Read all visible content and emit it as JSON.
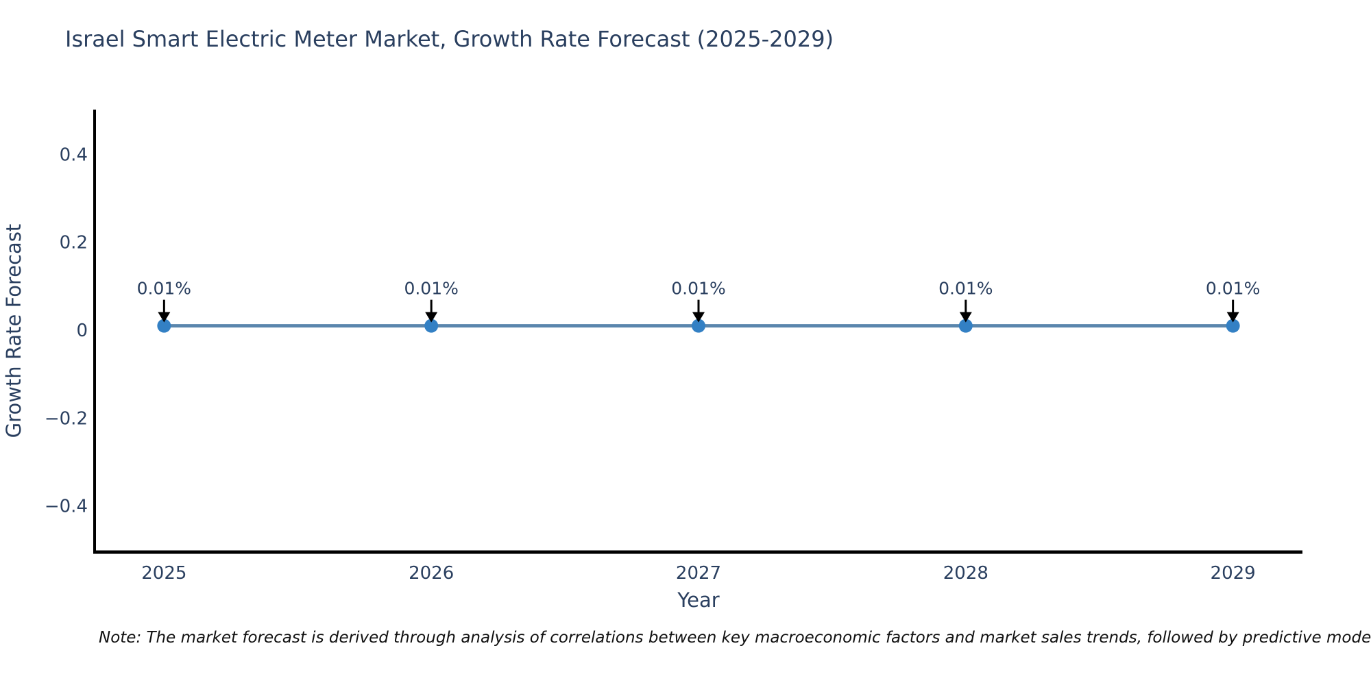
{
  "page": {
    "background_color": "#ffffff"
  },
  "title": {
    "text": "Israel Smart Electric Meter Market, Growth Rate Forecast (2025-2029)",
    "color": "#2a3f5f"
  },
  "note": {
    "text": "Note: The market forecast is derived through analysis of correlations between key macroeconomic factors and market sales trends, followed by predictive modeling to project future sales."
  },
  "chart_data": {
    "type": "line",
    "title": "Israel Smart Electric Meter Market, Growth Rate Forecast (2025-2029)",
    "xlabel": "Year",
    "ylabel": "Growth Rate Forecast",
    "x": [
      2025,
      2026,
      2027,
      2028,
      2029
    ],
    "x_tick_labels": [
      "2025",
      "2026",
      "2027",
      "2028",
      "2029"
    ],
    "series": [
      {
        "name": "Growth Rate Forecast",
        "values": [
          0.01,
          0.01,
          0.01,
          0.01,
          0.01
        ],
        "line_color": "#5a86ad",
        "marker_color": "#3380c4"
      }
    ],
    "point_labels": [
      "0.01%",
      "0.01%",
      "0.01%",
      "0.01%",
      "0.01%"
    ],
    "y_ticks": [
      0.4,
      0.2,
      0,
      -0.2,
      -0.4
    ],
    "y_tick_labels": [
      "0.4",
      "0.2",
      "0",
      "−0.2",
      "−0.4"
    ],
    "xlim": [
      2024.74,
      2029.26
    ],
    "ylim": [
      -0.505,
      0.502
    ],
    "grid": false,
    "legend_position": "none",
    "axis_color": "#000000",
    "tick_label_color": "#2a3f5f",
    "axis_title_color": "#2a3f5f",
    "annotation_color": "#2a3f5f",
    "annotation_arrow_color": "#000000"
  }
}
